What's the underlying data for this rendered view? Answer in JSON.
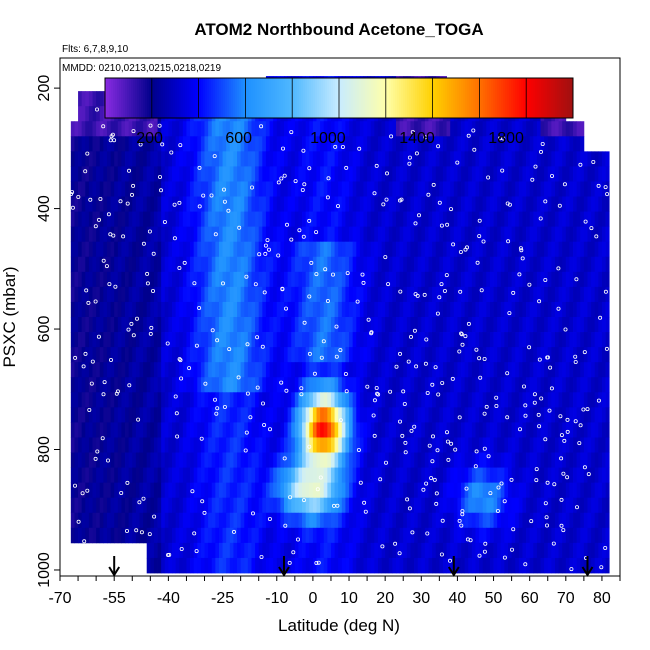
{
  "chart_data": {
    "type": "heatmap",
    "title": "ATOM2 Northbound Acetone_TOGA",
    "subtitle_flights": "Flts: 6,7,8,9,10",
    "subtitle_dates": "MMDD: 0210,0213,0215,0218,0219",
    "xlabel": "Latitude (deg N)",
    "ylabel": "PSXC (mbar)",
    "xlim": [
      -70,
      85
    ],
    "ylim": [
      1010,
      150
    ],
    "y_inverted": true,
    "x_ticks": [
      "-70",
      "-55",
      "-40",
      "-25",
      "-10",
      "0",
      "10",
      "20",
      "30",
      "40",
      "50",
      "60",
      "70",
      "80"
    ],
    "x_tick_values": [
      -70,
      -55,
      -40,
      -25,
      -10,
      0,
      10,
      20,
      30,
      40,
      50,
      60,
      70,
      80
    ],
    "x_minor_step": 5,
    "y_ticks": [
      "200",
      "400",
      "600",
      "800",
      "1000"
    ],
    "y_tick_values": [
      200,
      400,
      600,
      800,
      1000
    ],
    "colorbar": {
      "min": 0,
      "max": 2100,
      "ticks": [
        "200",
        "600",
        "1000",
        "1400",
        "1800"
      ],
      "tick_values": [
        200,
        600,
        1000,
        1400,
        1800
      ],
      "divisions": 10,
      "stops": [
        {
          "v": 0,
          "c": "#8a2be2"
        },
        {
          "v": 210,
          "c": "#00008b"
        },
        {
          "v": 420,
          "c": "#0000ff"
        },
        {
          "v": 630,
          "c": "#1e90ff"
        },
        {
          "v": 840,
          "c": "#4fb8ff"
        },
        {
          "v": 1050,
          "c": "#c8ecff"
        },
        {
          "v": 1260,
          "c": "#ffffaa"
        },
        {
          "v": 1470,
          "c": "#ffd000"
        },
        {
          "v": 1680,
          "c": "#ff7000"
        },
        {
          "v": 1890,
          "c": "#ff0000"
        },
        {
          "v": 2100,
          "c": "#a01010"
        }
      ]
    },
    "pressure_levels": [
      190,
      215,
      240,
      265,
      290,
      315,
      340,
      365,
      390,
      415,
      440,
      465,
      490,
      515,
      540,
      565,
      590,
      615,
      640,
      665,
      690,
      715,
      740,
      765,
      790,
      815,
      840,
      865,
      890,
      915,
      940,
      965,
      990
    ],
    "latitude_bins": [
      -65,
      -60,
      -55,
      -50,
      -45,
      -40,
      -35,
      -30,
      -25,
      -20,
      -15,
      -10,
      -5,
      0,
      5,
      10,
      15,
      20,
      25,
      30,
      35,
      40,
      45,
      50,
      55,
      60,
      65,
      70,
      75,
      80
    ],
    "flight_turn_markers_latitude": [
      -55,
      -8,
      39,
      76
    ]
  }
}
